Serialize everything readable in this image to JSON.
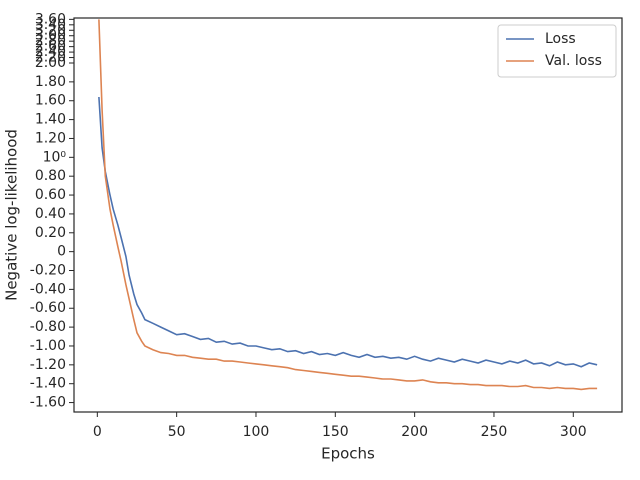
{
  "chart_data": {
    "type": "line",
    "xlabel": "Epochs",
    "ylabel": "Negative log-likelihood",
    "x": [
      1,
      3,
      5,
      8,
      10,
      13,
      15,
      18,
      20,
      23,
      25,
      28,
      30,
      35,
      40,
      45,
      50,
      55,
      60,
      65,
      70,
      75,
      80,
      85,
      90,
      95,
      100,
      105,
      110,
      115,
      120,
      125,
      130,
      135,
      140,
      145,
      150,
      155,
      160,
      165,
      170,
      175,
      180,
      185,
      190,
      195,
      200,
      205,
      210,
      215,
      220,
      225,
      230,
      235,
      240,
      245,
      250,
      255,
      260,
      265,
      270,
      275,
      280,
      285,
      290,
      295,
      300,
      305,
      310,
      315
    ],
    "series": [
      {
        "name": "Loss",
        "color": "#4c72b0",
        "values": [
          1.64,
          1.1,
          0.85,
          0.6,
          0.45,
          0.28,
          0.15,
          -0.05,
          -0.25,
          -0.45,
          -0.56,
          -0.65,
          -0.72,
          -0.76,
          -0.8,
          -0.84,
          -0.88,
          -0.87,
          -0.9,
          -0.93,
          -0.92,
          -0.96,
          -0.95,
          -0.98,
          -0.97,
          -1.0,
          -1.0,
          -1.02,
          -1.04,
          -1.03,
          -1.06,
          -1.05,
          -1.08,
          -1.06,
          -1.09,
          -1.08,
          -1.1,
          -1.07,
          -1.1,
          -1.12,
          -1.09,
          -1.12,
          -1.11,
          -1.13,
          -1.12,
          -1.14,
          -1.11,
          -1.14,
          -1.16,
          -1.13,
          -1.15,
          -1.17,
          -1.14,
          -1.16,
          -1.18,
          -1.15,
          -1.17,
          -1.19,
          -1.16,
          -1.18,
          -1.15,
          -1.19,
          -1.18,
          -1.21,
          -1.17,
          -1.2,
          -1.19,
          -1.22,
          -1.18,
          -1.2
        ]
      },
      {
        "name": "Val. loss",
        "color": "#dd8452",
        "values": [
          3.6,
          1.5,
          0.8,
          0.45,
          0.28,
          0.05,
          -0.1,
          -0.35,
          -0.5,
          -0.72,
          -0.86,
          -0.95,
          -1.0,
          -1.04,
          -1.07,
          -1.08,
          -1.1,
          -1.1,
          -1.12,
          -1.13,
          -1.14,
          -1.14,
          -1.16,
          -1.16,
          -1.17,
          -1.18,
          -1.19,
          -1.2,
          -1.21,
          -1.22,
          -1.23,
          -1.25,
          -1.26,
          -1.27,
          -1.28,
          -1.29,
          -1.3,
          -1.31,
          -1.32,
          -1.32,
          -1.33,
          -1.34,
          -1.35,
          -1.35,
          -1.36,
          -1.37,
          -1.37,
          -1.36,
          -1.38,
          -1.39,
          -1.39,
          -1.4,
          -1.4,
          -1.41,
          -1.41,
          -1.42,
          -1.42,
          -1.42,
          -1.43,
          -1.43,
          -1.42,
          -1.44,
          -1.44,
          -1.45,
          -1.44,
          -1.45,
          -1.45,
          -1.46,
          -1.45,
          -1.45
        ]
      }
    ],
    "xlim": [
      -14.7,
      330.7
    ],
    "xticks": [
      0,
      50,
      100,
      150,
      200,
      250,
      300
    ],
    "ylim": [
      -1.7,
      3.65
    ],
    "yticks": [
      {
        "value": -1.6,
        "label": "-1.60"
      },
      {
        "value": -1.4,
        "label": "-1.40"
      },
      {
        "value": -1.2,
        "label": "-1.20"
      },
      {
        "value": -1.0,
        "label": "-1.00"
      },
      {
        "value": -0.8,
        "label": "-0.80"
      },
      {
        "value": -0.6,
        "label": "-0.60"
      },
      {
        "value": -0.4,
        "label": "-0.40"
      },
      {
        "value": -0.2,
        "label": "-0.20"
      },
      0,
      {
        "value": 0.2,
        "label": "0.20"
      },
      {
        "value": 0.4,
        "label": "0.40"
      },
      {
        "value": 0.6,
        "label": "0.60"
      },
      {
        "value": 0.8,
        "label": "0.80"
      },
      {
        "value": 1,
        "label": "10⁰"
      },
      {
        "value": 1.2,
        "label": "1.20"
      },
      {
        "value": 1.4,
        "label": "1.40"
      },
      {
        "value": 1.6,
        "label": "1.60"
      },
      {
        "value": 1.8,
        "label": "1.80"
      },
      {
        "value": 2,
        "label": "2.00"
      },
      {
        "value": 2.2,
        "label": "2.20"
      },
      {
        "value": 2.4,
        "label": "2.40"
      },
      {
        "value": 2.6,
        "label": "2.60"
      },
      {
        "value": 2.8,
        "label": "2.80"
      },
      {
        "value": 3.0,
        "label": "3.00"
      },
      {
        "value": 3.2,
        "label": "3.20"
      },
      {
        "value": 3.4,
        "label": "3.40"
      },
      {
        "value": 3.6,
        "label": "3.60"
      }
    ],
    "legend": "upper right",
    "grid": false
  }
}
